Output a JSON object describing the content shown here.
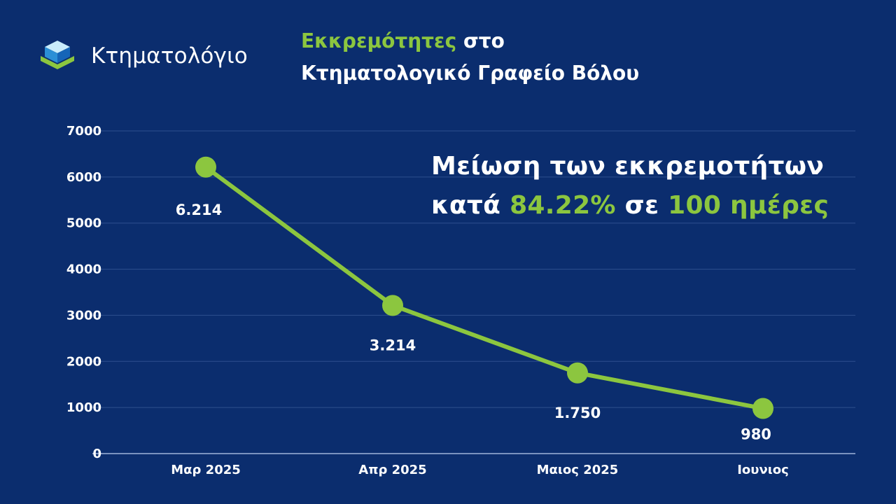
{
  "brand": {
    "name": "Κτηματολόγιο",
    "icon": "cube-logo-icon",
    "colors": {
      "top": "#c9ecfb",
      "left": "#2b8fd6",
      "right": "#1565b8",
      "base": "#8cc63f"
    }
  },
  "headline": {
    "highlight": "Εκκρεμότητες",
    "rest1": " στο",
    "line2": "Κτηματολογικό Γραφείο Βόλου"
  },
  "callout": {
    "line1": "Μείωση των εκκρεμοτήτων",
    "prefix": "κατά ",
    "percent": "84.22%",
    "mid": " σε ",
    "days": "100 ημέρες"
  },
  "colors": {
    "background": "#0b2d6e",
    "accent": "#8cc63f",
    "grid": "#2e4f8f",
    "text": "#ffffff"
  },
  "chart_data": {
    "type": "line",
    "categories": [
      "Μαρ 2025",
      "Απρ 2025",
      "Μαιος 2025",
      "Ιουνιος"
    ],
    "values": [
      6214,
      3214,
      1750,
      980
    ],
    "data_labels": [
      "6.214",
      "3.214",
      "1.750",
      "980"
    ],
    "ylim": [
      0,
      7000
    ],
    "yticks": [
      0,
      1000,
      2000,
      3000,
      4000,
      5000,
      6000,
      7000
    ],
    "grid": true,
    "legend": "none"
  }
}
